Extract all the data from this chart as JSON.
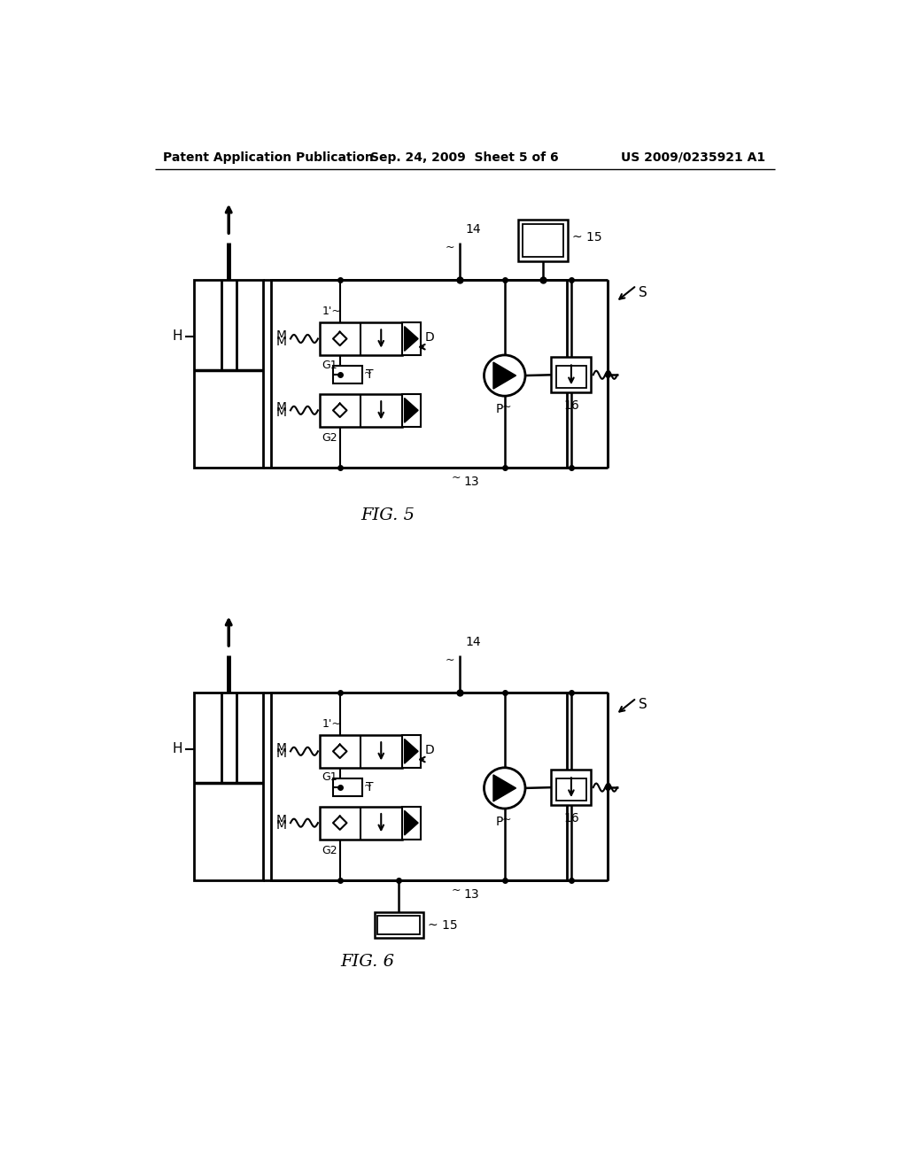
{
  "bg_color": "#ffffff",
  "line_color": "#000000",
  "header_left": "Patent Application Publication",
  "header_mid": "Sep. 24, 2009  Sheet 5 of 6",
  "header_right": "US 2009/0235921 A1",
  "fig5_label": "FIG. 5",
  "fig6_label": "FIG. 6"
}
